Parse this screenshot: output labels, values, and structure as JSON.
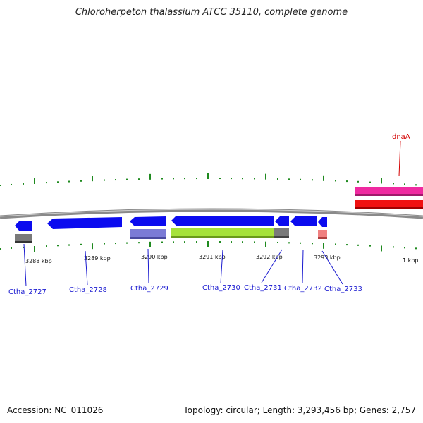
{
  "title": "Chloroherpeton thalassium ATCC 35110, complete genome",
  "footer": {
    "accession": "Accession: NC_011026",
    "summary": "Topology: circular; Length: 3,293,456 bp; Genes: 2,757"
  },
  "colors": {
    "backbone": "#8a8a8a",
    "tick": "#1f8a1f",
    "gene_label": "#1a1ad0",
    "highlight_label": "#d40000",
    "cds": "#0b0bef",
    "gene_gray": "#7a7a7a",
    "misc_lavender": "#7b7bd6",
    "misc_lime": "#a6e23a",
    "misc_pink": "#f08080",
    "dnaA_magenta": "#ef2aa0",
    "dnaA_red": "#f01010"
  },
  "kbp_labels": [
    "3288 kbp",
    "3289 kbp",
    "3290 kbp",
    "3291 kbp",
    "3292 kbp",
    "3293 kbp",
    "1 kbp"
  ],
  "gene_labels": [
    "Ctha_2727",
    "Ctha_2728",
    "Ctha_2729",
    "Ctha_2730",
    "Ctha_2731",
    "Ctha_2732",
    "Ctha_2733"
  ],
  "highlight_label": "dnaA"
}
